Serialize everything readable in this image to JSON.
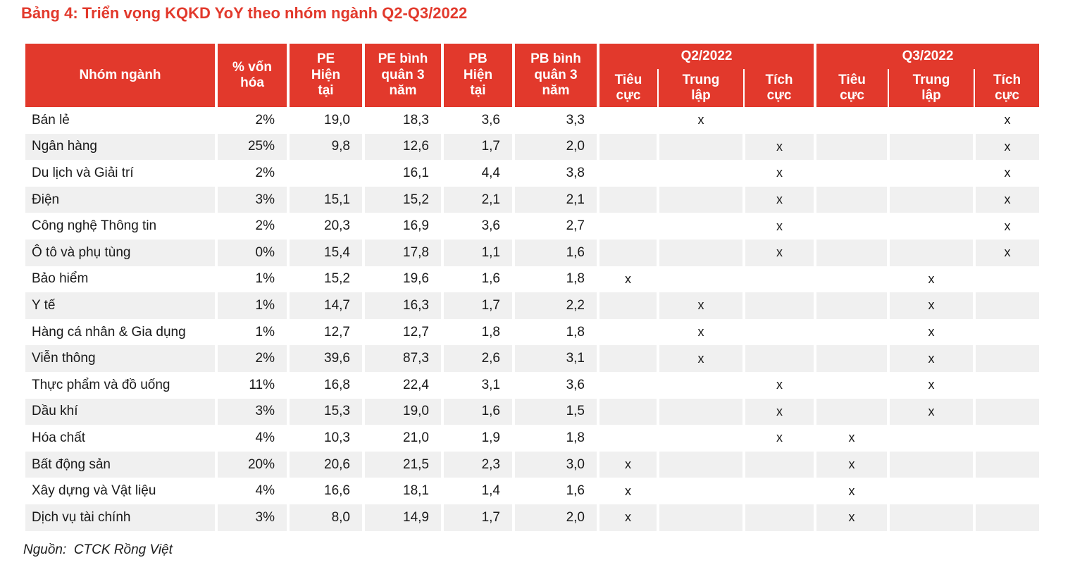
{
  "title": "Bảng 4: Triển vọng KQKD YoY theo nhóm ngành Q2-Q3/2022",
  "source": "Nguồn:  CTCK Rồng Việt",
  "colors": {
    "accent_red": "#E2392C",
    "stripe_gray": "#F0F0F0",
    "text_dark": "#1A1A1A"
  },
  "table": {
    "header": {
      "industry": "Nhóm ngành",
      "market_cap": "% vốn\nhóa",
      "pe_current": "PE\nHiện\ntại",
      "pe_avg3y": "PE bình\nquân 3\nnăm",
      "pb_current": "PB\nHiện\ntại",
      "pb_avg3y": "PB bình\nquân 3\nnăm",
      "q2_group": "Q2/2022",
      "q3_group": "Q3/2022",
      "outlook_negative": "Tiêu\ncực",
      "outlook_neutral": "Trung\nlập",
      "outlook_positive": "Tích\ncực"
    },
    "mark_glyph": "x",
    "rows": [
      {
        "industry": "Bán lẻ",
        "market_cap": "2%",
        "pe_current": "19,0",
        "pe_avg3y": "18,3",
        "pb_current": "3,6",
        "pb_avg3y": "3,3",
        "q2": [
          "",
          "x",
          ""
        ],
        "q3": [
          "",
          "",
          "x"
        ]
      },
      {
        "industry": "Ngân hàng",
        "market_cap": "25%",
        "pe_current": "9,8",
        "pe_avg3y": "12,6",
        "pb_current": "1,7",
        "pb_avg3y": "2,0",
        "q2": [
          "",
          "",
          "x"
        ],
        "q3": [
          "",
          "",
          "x"
        ]
      },
      {
        "industry": "Du lịch và Giải trí",
        "market_cap": "2%",
        "pe_current": "",
        "pe_avg3y": "16,1",
        "pb_current": "4,4",
        "pb_avg3y": "3,8",
        "q2": [
          "",
          "",
          "x"
        ],
        "q3": [
          "",
          "",
          "x"
        ]
      },
      {
        "industry": "Điện",
        "market_cap": "3%",
        "pe_current": "15,1",
        "pe_avg3y": "15,2",
        "pb_current": "2,1",
        "pb_avg3y": "2,1",
        "q2": [
          "",
          "",
          "x"
        ],
        "q3": [
          "",
          "",
          "x"
        ]
      },
      {
        "industry": "Công nghệ Thông tin",
        "market_cap": "2%",
        "pe_current": "20,3",
        "pe_avg3y": "16,9",
        "pb_current": "3,6",
        "pb_avg3y": "2,7",
        "q2": [
          "",
          "",
          "x"
        ],
        "q3": [
          "",
          "",
          "x"
        ]
      },
      {
        "industry": "Ô tô và phụ tùng",
        "market_cap": "0%",
        "pe_current": "15,4",
        "pe_avg3y": "17,8",
        "pb_current": "1,1",
        "pb_avg3y": "1,6",
        "q2": [
          "",
          "",
          "x"
        ],
        "q3": [
          "",
          "",
          "x"
        ]
      },
      {
        "industry": "Bảo hiểm",
        "market_cap": "1%",
        "pe_current": "15,2",
        "pe_avg3y": "19,6",
        "pb_current": "1,6",
        "pb_avg3y": "1,8",
        "q2": [
          "x",
          "",
          ""
        ],
        "q3": [
          "",
          "x",
          ""
        ]
      },
      {
        "industry": "Y tế",
        "market_cap": "1%",
        "pe_current": "14,7",
        "pe_avg3y": "16,3",
        "pb_current": "1,7",
        "pb_avg3y": "2,2",
        "q2": [
          "",
          "x",
          ""
        ],
        "q3": [
          "",
          "x",
          ""
        ]
      },
      {
        "industry": "Hàng cá nhân & Gia dụng",
        "market_cap": "1%",
        "pe_current": "12,7",
        "pe_avg3y": "12,7",
        "pb_current": "1,8",
        "pb_avg3y": "1,8",
        "q2": [
          "",
          "x",
          ""
        ],
        "q3": [
          "",
          "x",
          ""
        ]
      },
      {
        "industry": "Viễn thông",
        "market_cap": "2%",
        "pe_current": "39,6",
        "pe_avg3y": "87,3",
        "pb_current": "2,6",
        "pb_avg3y": "3,1",
        "q2": [
          "",
          "x",
          ""
        ],
        "q3": [
          "",
          "x",
          ""
        ]
      },
      {
        "industry": "Thực phẩm và đồ uống",
        "market_cap": "11%",
        "pe_current": "16,8",
        "pe_avg3y": "22,4",
        "pb_current": "3,1",
        "pb_avg3y": "3,6",
        "q2": [
          "",
          "",
          "x"
        ],
        "q3": [
          "",
          "x",
          ""
        ]
      },
      {
        "industry": "Dầu khí",
        "market_cap": "3%",
        "pe_current": "15,3",
        "pe_avg3y": "19,0",
        "pb_current": "1,6",
        "pb_avg3y": "1,5",
        "q2": [
          "",
          "",
          "x"
        ],
        "q3": [
          "",
          "x",
          ""
        ]
      },
      {
        "industry": "Hóa chất",
        "market_cap": "4%",
        "pe_current": "10,3",
        "pe_avg3y": "21,0",
        "pb_current": "1,9",
        "pb_avg3y": "1,8",
        "q2": [
          "",
          "",
          "x"
        ],
        "q3": [
          "x",
          "",
          ""
        ]
      },
      {
        "industry": "Bất động sản",
        "market_cap": "20%",
        "pe_current": "20,6",
        "pe_avg3y": "21,5",
        "pb_current": "2,3",
        "pb_avg3y": "3,0",
        "q2": [
          "x",
          "",
          ""
        ],
        "q3": [
          "x",
          "",
          ""
        ]
      },
      {
        "industry": "Xây dựng và Vật liệu",
        "market_cap": "4%",
        "pe_current": "16,6",
        "pe_avg3y": "18,1",
        "pb_current": "1,4",
        "pb_avg3y": "1,6",
        "q2": [
          "x",
          "",
          ""
        ],
        "q3": [
          "x",
          "",
          ""
        ]
      },
      {
        "industry": "Dịch vụ tài chính",
        "market_cap": "3%",
        "pe_current": "8,0",
        "pe_avg3y": "14,9",
        "pb_current": "1,7",
        "pb_avg3y": "2,0",
        "q2": [
          "x",
          "",
          ""
        ],
        "q3": [
          "x",
          "",
          ""
        ]
      }
    ]
  }
}
